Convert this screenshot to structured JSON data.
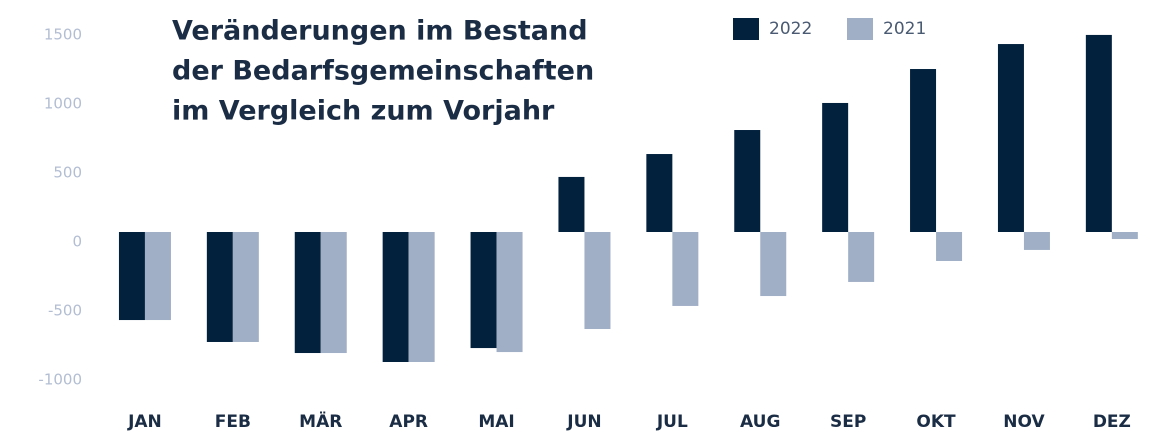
{
  "chart_data": {
    "type": "bar",
    "title": [
      "Veränderungen im Bestand",
      "der Bedarfsgemeinschaften",
      "im Vergleich zum Vorjahr"
    ],
    "categories": [
      "JAN",
      "FEB",
      "MÄR",
      "APR",
      "MAI",
      "JUN",
      "JUL",
      "AUG",
      "SEP",
      "OKT",
      "NOV",
      "DEZ"
    ],
    "series": [
      {
        "name": "2022",
        "color": "#02213d",
        "values": [
          -638,
          -797,
          -877,
          -942,
          -841,
          399,
          565,
          739,
          935,
          1181,
          1362,
          1428
        ]
      },
      {
        "name": "2021",
        "color": "#a1afc6",
        "values": [
          -638,
          -797,
          -877,
          -942,
          -870,
          -703,
          -536,
          -464,
          -362,
          -210,
          -130,
          -51
        ]
      }
    ],
    "ylim": [
      -1200,
      1600
    ],
    "yticks": [
      -1000,
      -500,
      0,
      500,
      1000,
      1500
    ],
    "grid": false
  }
}
